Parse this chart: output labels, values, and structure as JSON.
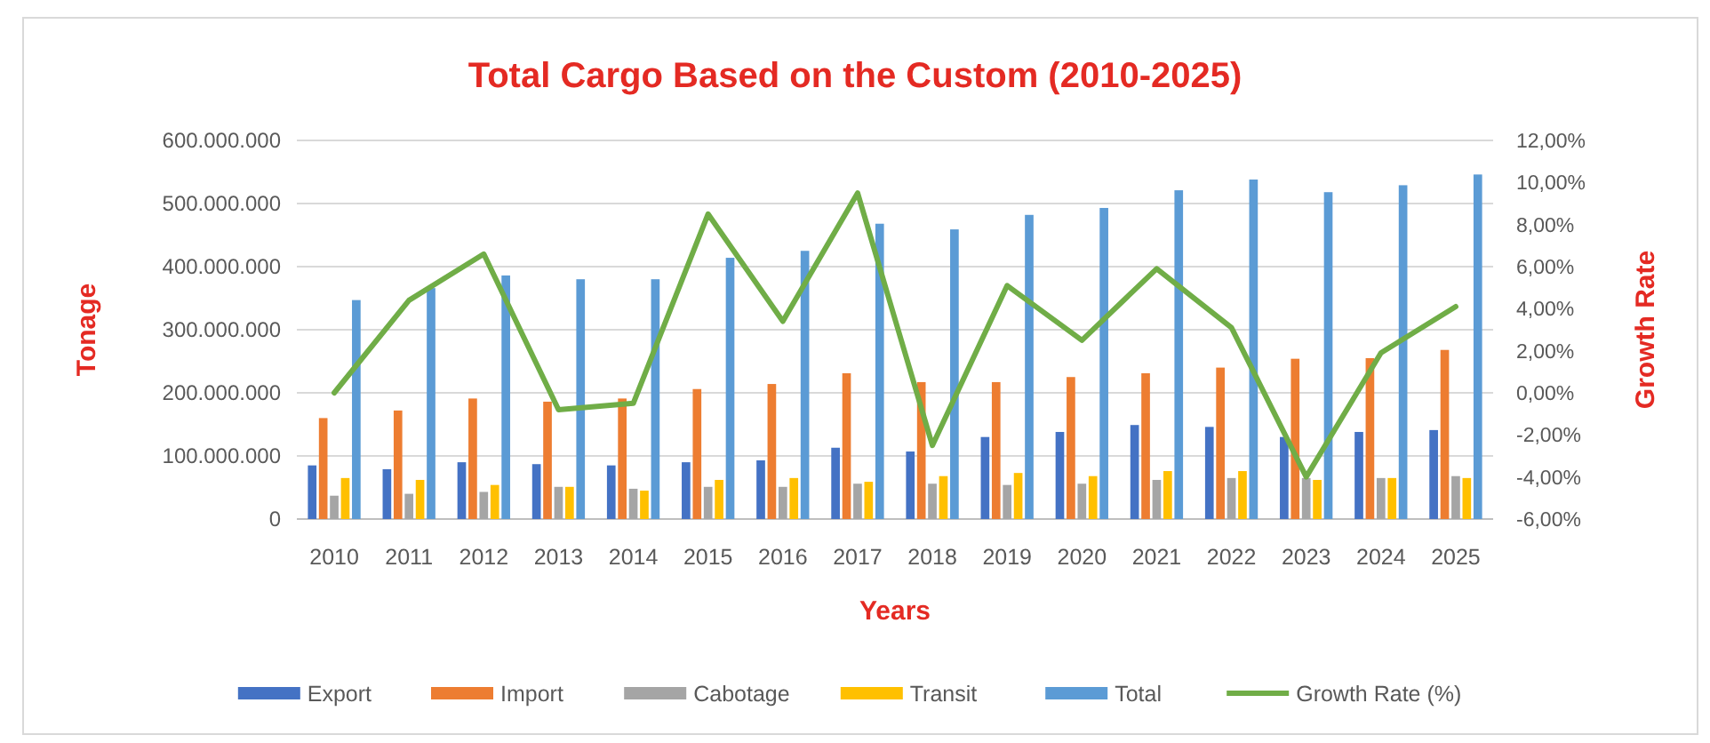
{
  "chart_data": {
    "type": "bar",
    "title": "Total Cargo Based on the Custom (2010-2025)",
    "xlabel": "Years",
    "ylabel": "Tonage",
    "y2label": "Growth Rate",
    "categories": [
      "2010",
      "2011",
      "2012",
      "2013",
      "2014",
      "2015",
      "2016",
      "2017",
      "2018",
      "2019",
      "2020",
      "2021",
      "2022",
      "2023",
      "2024",
      "2025"
    ],
    "series": [
      {
        "name": "Export",
        "color": "#4472c4",
        "values": [
          85000000,
          79000000,
          90000000,
          87000000,
          85000000,
          90000000,
          93000000,
          113000000,
          107000000,
          130000000,
          138000000,
          149000000,
          146000000,
          130000000,
          138000000,
          141000000
        ]
      },
      {
        "name": "Import",
        "color": "#ed7d31",
        "values": [
          160000000,
          172000000,
          191000000,
          186000000,
          191000000,
          206000000,
          214000000,
          231000000,
          217000000,
          217000000,
          225000000,
          231000000,
          240000000,
          254000000,
          255000000,
          268000000
        ]
      },
      {
        "name": "Cabotage",
        "color": "#a5a5a5",
        "values": [
          37000000,
          40000000,
          43000000,
          51000000,
          48000000,
          51000000,
          51000000,
          56000000,
          56000000,
          54000000,
          56000000,
          62000000,
          65000000,
          65000000,
          65000000,
          68000000
        ]
      },
      {
        "name": "Transit",
        "color": "#ffc000",
        "values": [
          65000000,
          62000000,
          54000000,
          51000000,
          45000000,
          62000000,
          65000000,
          59000000,
          68000000,
          73000000,
          68000000,
          76000000,
          76000000,
          62000000,
          65000000,
          65000000
        ]
      },
      {
        "name": "Total",
        "color": "#5b9bd5",
        "values": [
          347000000,
          366000000,
          386000000,
          380000000,
          380000000,
          414000000,
          425000000,
          468000000,
          459000000,
          482000000,
          493000000,
          521000000,
          538000000,
          518000000,
          529000000,
          546000000
        ]
      },
      {
        "name": "Growth Rate (%)",
        "type": "line",
        "axis": "y2",
        "color": "#70ad47",
        "values": [
          0.0,
          4.4,
          6.6,
          -0.8,
          -0.5,
          8.5,
          3.4,
          9.5,
          -2.5,
          5.1,
          2.5,
          5.9,
          3.1,
          -4.0,
          1.9,
          4.1
        ]
      }
    ],
    "ylim": [
      0,
      600000000
    ],
    "yticks": [
      0,
      {
        "value": 100000000,
        "label": "100.000.000"
      },
      {
        "value": 200000000,
        "label": "200.000.000"
      },
      {
        "value": 300000000,
        "label": "300.000.000"
      },
      {
        "value": 400000000,
        "label": "400.000.000"
      },
      {
        "value": 500000000,
        "label": "500.000.000"
      },
      {
        "value": 600000000,
        "label": "600.000.000"
      }
    ],
    "y2lim": [
      -6,
      12
    ],
    "y2ticks": [
      {
        "value": -6,
        "label": "-6,00%"
      },
      {
        "value": -4,
        "label": "-4,00%"
      },
      {
        "value": -2,
        "label": "-2,00%"
      },
      {
        "value": 0,
        "label": "0,00%"
      },
      {
        "value": 2,
        "label": "2,00%"
      },
      {
        "value": 4,
        "label": "4,00%"
      },
      {
        "value": 6,
        "label": "6,00%"
      },
      {
        "value": 8,
        "label": "8,00%"
      },
      {
        "value": 10,
        "label": "10,00%"
      },
      {
        "value": 12,
        "label": "12,00%"
      }
    ],
    "grid": "y",
    "legend": "bottom"
  }
}
